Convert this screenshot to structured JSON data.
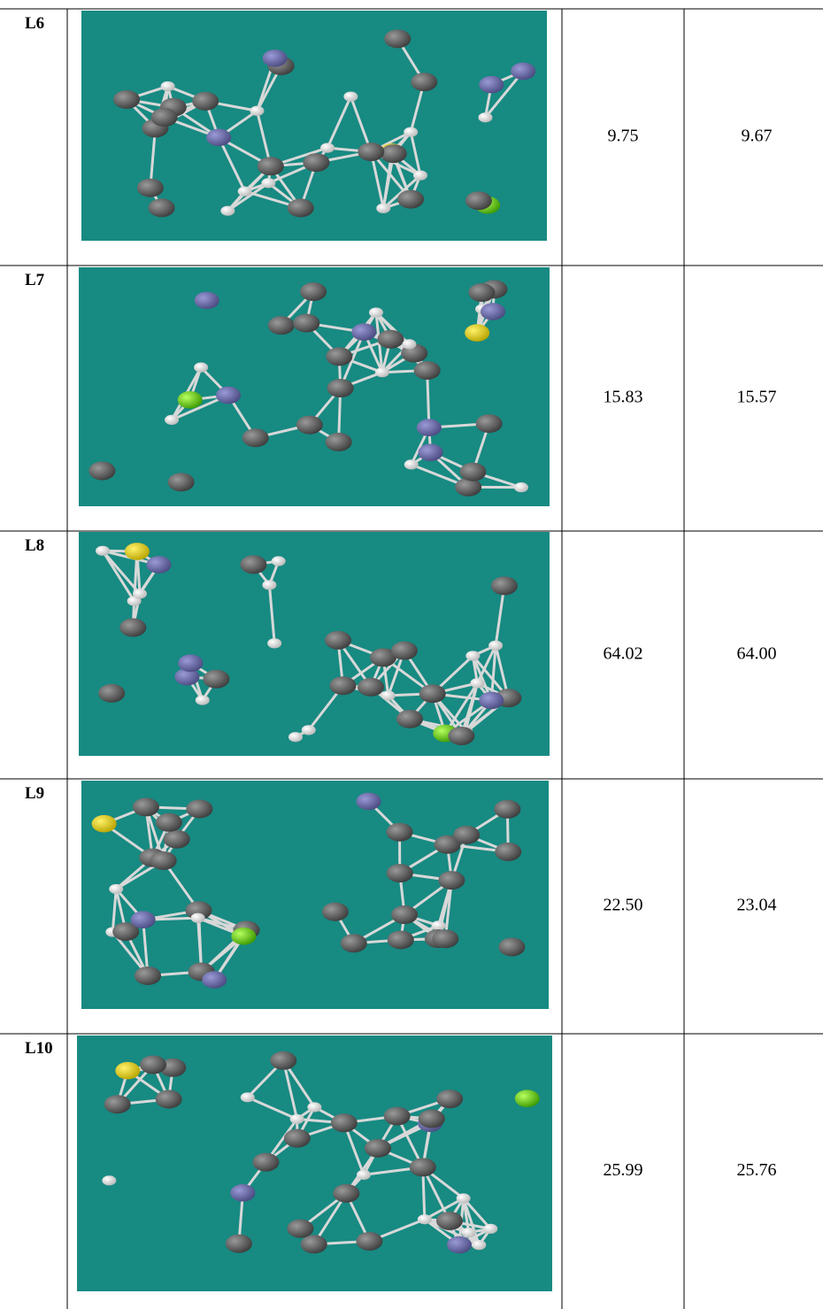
{
  "table": {
    "rows": [
      [
        "L6",
        "9.75",
        "9.67"
      ],
      [
        "L7",
        "15.83",
        "15.57"
      ],
      [
        "L8",
        "64.02",
        "64.00"
      ],
      [
        "L9",
        "22.50",
        "23.04"
      ],
      [
        "L10",
        "25.99",
        "25.76"
      ]
    ]
  }
}
